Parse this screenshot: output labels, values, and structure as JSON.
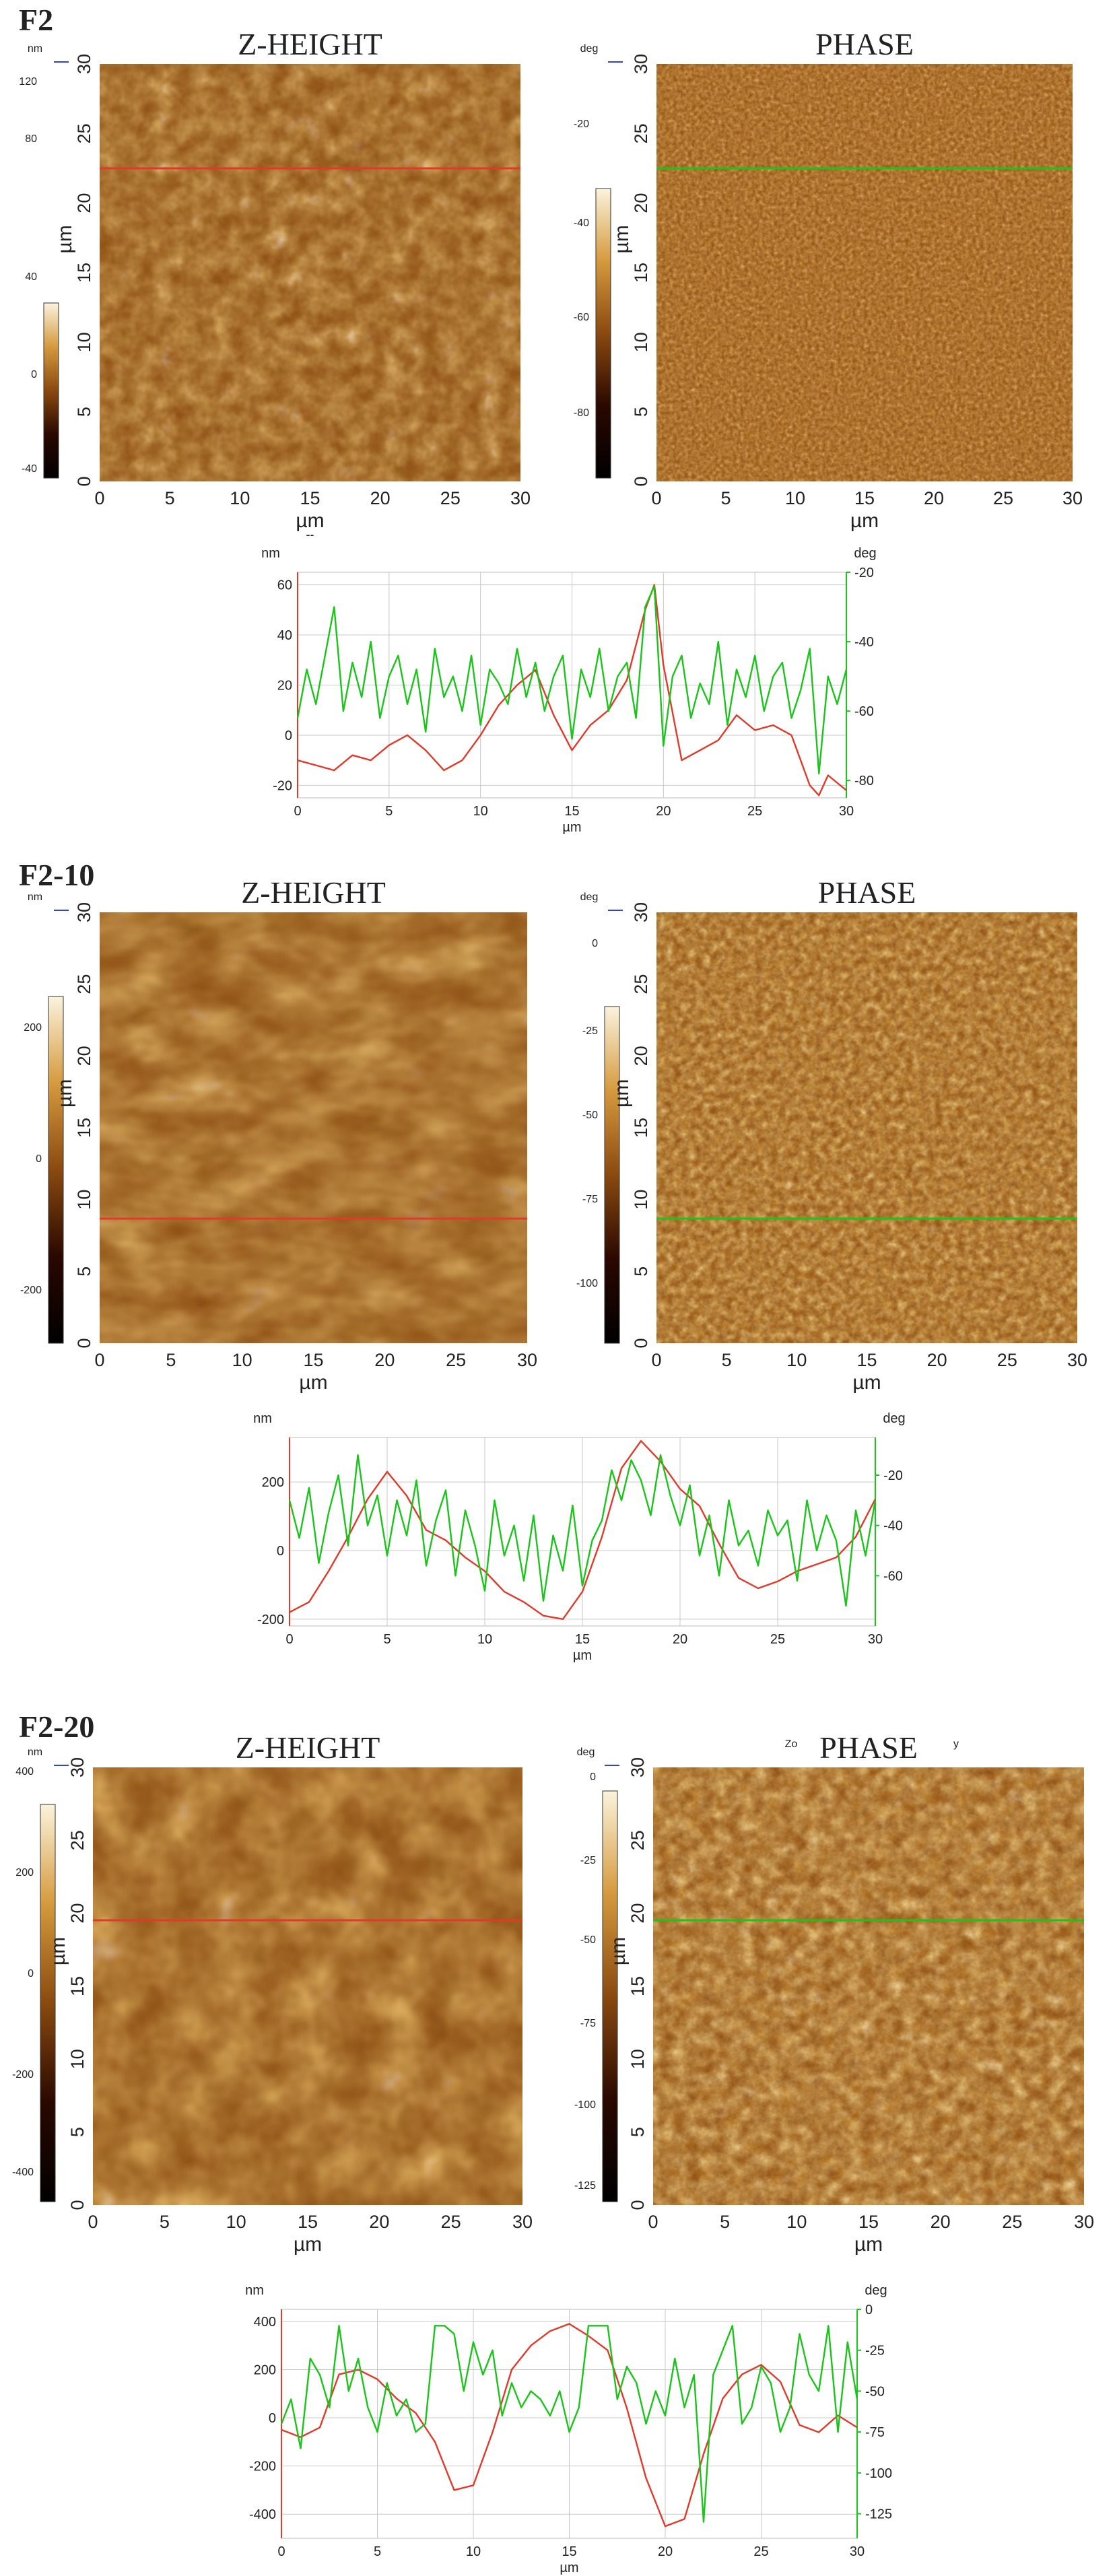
{
  "colors": {
    "height_line": "#e03a2a",
    "phase_line": "#1ac41a",
    "afm_dark": "#2a0800",
    "afm_mid": "#8a4a10",
    "afm_bright": "#f6e8c2"
  },
  "panels": [
    {
      "label": "F2",
      "zheight": {
        "title": "Z-HEIGHT",
        "unit": "nm",
        "scale_ticks": [
          "120",
          "80",
          "40",
          "0",
          "-40"
        ],
        "x_ticks": [
          "0",
          "5",
          "10",
          "15",
          "20",
          "25",
          "30"
        ],
        "y_ticks": [
          "0",
          "5",
          "10",
          "15",
          "20",
          "25",
          "30"
        ],
        "axis_label": "µm",
        "extra_mark": "--"
      },
      "phase": {
        "title": "PHASE",
        "unit": "deg",
        "scale_ticks": [
          "-20",
          "-40",
          "-60",
          "-80"
        ],
        "x_ticks": [
          "0",
          "5",
          "10",
          "15",
          "20",
          "25",
          "30"
        ],
        "y_ticks": [
          "0",
          "5",
          "10",
          "15",
          "20",
          "25",
          "30"
        ],
        "axis_label": "µm"
      }
    },
    {
      "label": "F2-10",
      "zheight": {
        "title": "Z-HEIGHT",
        "unit": "nm",
        "scale_ticks": [
          "200",
          "0",
          "-200"
        ],
        "x_ticks": [
          "0",
          "5",
          "10",
          "15",
          "20",
          "25",
          "30"
        ],
        "y_ticks": [
          "0",
          "5",
          "10",
          "15",
          "20",
          "25",
          "30"
        ],
        "axis_label": "µm"
      },
      "phase": {
        "title": "PHASE",
        "unit": "deg",
        "scale_ticks": [
          "0",
          "-25",
          "-50",
          "-75",
          "-100"
        ],
        "x_ticks": [
          "0",
          "5",
          "10",
          "15",
          "20",
          "25",
          "30"
        ],
        "y_ticks": [
          "0",
          "5",
          "10",
          "15",
          "20",
          "25",
          "30"
        ],
        "axis_label": "µm"
      }
    },
    {
      "label": "F2-20",
      "zheight": {
        "title": "Z-HEIGHT",
        "unit": "nm",
        "scale_ticks": [
          "400",
          "200",
          "0",
          "-200",
          "-400"
        ],
        "x_ticks": [
          "0",
          "5",
          "10",
          "15",
          "20",
          "25",
          "30"
        ],
        "y_ticks": [
          "0",
          "5",
          "10",
          "15",
          "20",
          "25",
          "30"
        ],
        "axis_label": "µm"
      },
      "phase": {
        "title": "PHASE",
        "unit": "deg",
        "scale_ticks": [
          "0",
          "-25",
          "-50",
          "-75",
          "-100",
          "-125"
        ],
        "x_ticks": [
          "0",
          "5",
          "10",
          "15",
          "20",
          "25",
          "30"
        ],
        "y_ticks": [
          "0",
          "5",
          "10",
          "15",
          "20",
          "25",
          "30"
        ],
        "axis_label": "µm",
        "corner_marks": [
          "Zo",
          "y"
        ]
      }
    }
  ],
  "chart_data": [
    {
      "type": "line",
      "panel": "F2",
      "xlabel": "µm",
      "ylabel_left": "nm",
      "ylabel_right": "deg",
      "xlim": [
        0,
        30
      ],
      "ylim_left": [
        -25,
        65
      ],
      "ylim_right": [
        -85,
        -20
      ],
      "x_ticks": [
        0,
        5,
        10,
        15,
        20,
        25,
        30
      ],
      "y_ticks_left": [
        -20,
        0,
        20,
        40,
        60
      ],
      "y_ticks_right": [
        -20,
        -40,
        -60,
        -80
      ],
      "grid": true,
      "series": [
        {
          "axis": "left",
          "color": "#e03a2a",
          "x": [
            0,
            1,
            2,
            3,
            4,
            5,
            6,
            7,
            8,
            9,
            10,
            11,
            12,
            13,
            14,
            15,
            16,
            17,
            18,
            19,
            19.5,
            20,
            21,
            22,
            23,
            24,
            25,
            26,
            27,
            28,
            28.5,
            29,
            30
          ],
          "y": [
            -10,
            -12,
            -14,
            -8,
            -10,
            -4,
            0,
            -6,
            -14,
            -10,
            0,
            12,
            20,
            26,
            8,
            -6,
            4,
            10,
            22,
            50,
            60,
            28,
            -10,
            -6,
            -2,
            8,
            2,
            4,
            0,
            -20,
            -24,
            -16,
            -22
          ]
        },
        {
          "axis": "right",
          "color": "#1ac41a",
          "x": [
            0,
            0.5,
            1,
            1.5,
            2,
            2.5,
            3,
            3.5,
            4,
            4.5,
            5,
            5.5,
            6,
            6.5,
            7,
            7.5,
            8,
            8.5,
            9,
            9.5,
            10,
            10.5,
            11,
            11.5,
            12,
            12.5,
            13,
            13.5,
            14,
            14.5,
            15,
            15.5,
            16,
            16.5,
            17,
            17.5,
            18,
            18.5,
            19,
            19.5,
            20,
            20.5,
            21,
            21.5,
            22,
            22.5,
            23,
            23.5,
            24,
            24.5,
            25,
            25.5,
            26,
            26.5,
            27,
            27.5,
            28,
            28.5,
            29,
            29.5,
            30
          ],
          "y": [
            -62,
            -48,
            -58,
            -44,
            -30,
            -60,
            -46,
            -56,
            -40,
            -62,
            -50,
            -44,
            -58,
            -48,
            -66,
            -42,
            -56,
            -50,
            -60,
            -44,
            -64,
            -48,
            -52,
            -58,
            -42,
            -56,
            -46,
            -60,
            -50,
            -44,
            -68,
            -48,
            -56,
            -42,
            -60,
            -50,
            -46,
            -62,
            -30,
            -24,
            -70,
            -50,
            -44,
            -62,
            -52,
            -58,
            -40,
            -64,
            -48,
            -56,
            -44,
            -60,
            -50,
            -46,
            -62,
            -54,
            -42,
            -78,
            -50,
            -58,
            -48
          ]
        }
      ]
    },
    {
      "type": "line",
      "panel": "F2-10",
      "xlabel": "µm",
      "ylabel_left": "nm",
      "ylabel_right": "deg",
      "xlim": [
        0,
        30
      ],
      "ylim_left": [
        -220,
        330
      ],
      "ylim_right": [
        -80,
        -5
      ],
      "x_ticks": [
        0,
        5,
        10,
        15,
        20,
        25,
        30
      ],
      "y_ticks_left": [
        -200,
        0,
        200
      ],
      "y_ticks_right": [
        -20,
        -40,
        -60
      ],
      "grid": true,
      "series": [
        {
          "axis": "left",
          "color": "#e03a2a",
          "x": [
            0,
            1,
            2,
            3,
            4,
            5,
            6,
            7,
            8,
            9,
            10,
            11,
            12,
            13,
            14,
            15,
            16,
            17,
            18,
            19,
            20,
            21,
            22,
            23,
            24,
            25,
            26,
            27,
            28,
            29,
            30
          ],
          "y": [
            -180,
            -150,
            -60,
            40,
            150,
            230,
            160,
            60,
            30,
            -20,
            -60,
            -120,
            -150,
            -190,
            -200,
            -120,
            40,
            240,
            320,
            260,
            180,
            130,
            20,
            -80,
            -110,
            -90,
            -60,
            -40,
            -20,
            40,
            150
          ]
        },
        {
          "axis": "right",
          "color": "#1ac41a",
          "x": [
            0,
            0.5,
            1,
            1.5,
            2,
            2.5,
            3,
            3.5,
            4,
            4.5,
            5,
            5.5,
            6,
            6.5,
            7,
            7.5,
            8,
            8.5,
            9,
            9.5,
            10,
            10.5,
            11,
            11.5,
            12,
            12.5,
            13,
            13.5,
            14,
            14.5,
            15,
            15.5,
            16,
            16.5,
            17,
            17.5,
            18,
            18.5,
            19,
            19.5,
            20,
            20.5,
            21,
            21.5,
            22,
            22.5,
            23,
            23.5,
            24,
            24.5,
            25,
            25.5,
            26,
            26.5,
            27,
            27.5,
            28,
            28.5,
            29,
            29.5,
            30
          ],
          "y": [
            -30,
            -45,
            -25,
            -55,
            -35,
            -20,
            -48,
            -12,
            -40,
            -28,
            -52,
            -30,
            -44,
            -22,
            -56,
            -38,
            -26,
            -60,
            -34,
            -48,
            -66,
            -30,
            -52,
            -40,
            -62,
            -36,
            -70,
            -44,
            -58,
            -32,
            -64,
            -46,
            -38,
            -18,
            -30,
            -14,
            -22,
            -36,
            -12,
            -28,
            -40,
            -24,
            -52,
            -36,
            -60,
            -30,
            -48,
            -42,
            -56,
            -34,
            -44,
            -38,
            -62,
            -30,
            -50,
            -36,
            -46,
            -72,
            -34,
            -52,
            -30
          ]
        }
      ]
    },
    {
      "type": "line",
      "panel": "F2-20",
      "xlabel": "µm",
      "ylabel_left": "nm",
      "ylabel_right": "deg",
      "xlim": [
        0,
        30
      ],
      "ylim_left": [
        -500,
        450
      ],
      "ylim_right": [
        -140,
        0
      ],
      "x_ticks": [
        0,
        5,
        10,
        15,
        20,
        25,
        30
      ],
      "y_ticks_left": [
        -400,
        -200,
        0,
        200,
        400
      ],
      "y_ticks_right": [
        0,
        -25,
        -50,
        -75,
        -100,
        -125
      ],
      "grid": true,
      "series": [
        {
          "axis": "left",
          "color": "#e03a2a",
          "x": [
            0,
            1,
            2,
            3,
            4,
            5,
            6,
            7,
            8,
            9,
            10,
            11,
            12,
            13,
            14,
            15,
            16,
            17,
            18,
            19,
            20,
            21,
            22,
            23,
            24,
            25,
            26,
            27,
            28,
            29,
            30
          ],
          "y": [
            -50,
            -80,
            -40,
            180,
            200,
            160,
            80,
            20,
            -100,
            -300,
            -280,
            -60,
            200,
            300,
            360,
            390,
            340,
            280,
            40,
            -250,
            -450,
            -420,
            -150,
            80,
            180,
            220,
            150,
            -30,
            -60,
            10,
            -40
          ]
        },
        {
          "axis": "right",
          "color": "#1ac41a",
          "x": [
            0,
            0.5,
            1,
            1.5,
            2,
            2.5,
            3,
            3.5,
            4,
            4.5,
            5,
            5.5,
            6,
            6.5,
            7,
            7.5,
            8,
            8.5,
            9,
            9.5,
            10,
            10.5,
            11,
            11.5,
            12,
            12.5,
            13,
            13.5,
            14,
            14.5,
            15,
            15.5,
            16,
            16.5,
            17,
            17.5,
            18,
            18.5,
            19,
            19.5,
            20,
            20.5,
            21,
            21.5,
            22,
            22.5,
            23,
            23.5,
            24,
            24.5,
            25,
            25.5,
            26,
            26.5,
            27,
            27.5,
            28,
            28.5,
            29,
            29.5,
            30
          ],
          "y": [
            -70,
            -55,
            -85,
            -30,
            -40,
            -60,
            -10,
            -50,
            -30,
            -60,
            -75,
            -45,
            -65,
            -55,
            -75,
            -70,
            -10,
            -10,
            -15,
            -50,
            -20,
            -40,
            -25,
            -65,
            -45,
            -60,
            -50,
            -55,
            -65,
            -50,
            -75,
            -60,
            -10,
            -10,
            -10,
            -55,
            -35,
            -45,
            -70,
            -50,
            -65,
            -30,
            -60,
            -40,
            -130,
            -40,
            -25,
            -10,
            -70,
            -60,
            -35,
            -45,
            -75,
            -60,
            -15,
            -40,
            -50,
            -10,
            -75,
            -20,
            -55
          ]
        }
      ]
    }
  ]
}
